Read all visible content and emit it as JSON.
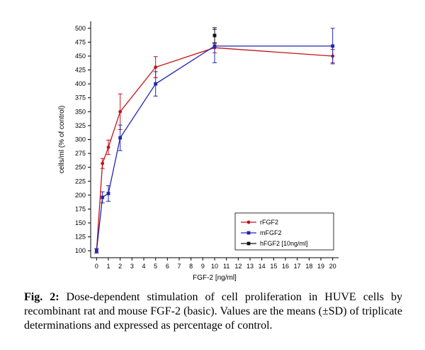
{
  "chart_data": {
    "type": "line",
    "title": "",
    "xlabel": "FGF-2 [ng/ml]",
    "ylabel": "cells/ml (% of control)",
    "xlim": [
      -0.5,
      20.5
    ],
    "ylim": [
      87.5,
      512.5
    ],
    "grid": false,
    "legend_position": "bottom-right",
    "x_ticks": [
      0,
      1,
      2,
      3,
      4,
      5,
      6,
      7,
      8,
      9,
      10,
      11,
      12,
      13,
      14,
      15,
      16,
      17,
      18,
      19,
      20
    ],
    "y_ticks": [
      100,
      125,
      150,
      175,
      200,
      225,
      250,
      275,
      300,
      325,
      350,
      375,
      400,
      425,
      450,
      475,
      500
    ],
    "series": [
      {
        "name": "rFGF2",
        "color": "#c41218",
        "marker": "circle",
        "x": [
          0,
          0.5,
          1,
          2,
          5,
          10,
          20
        ],
        "y": [
          100,
          257,
          286,
          350,
          430,
          465,
          450
        ],
        "err": [
          4,
          9,
          13,
          32,
          19,
          9,
          12
        ]
      },
      {
        "name": "mFGF2",
        "color": "#2226b2",
        "marker": "square",
        "x": [
          0,
          0.5,
          1,
          2,
          5,
          10,
          20
        ],
        "y": [
          100,
          196,
          203,
          303,
          400,
          468,
          468
        ],
        "err": [
          4,
          10,
          14,
          23,
          22,
          30,
          32
        ]
      },
      {
        "name": "hFGF2 [10ng/ml]",
        "color": "#111111",
        "marker": "square",
        "x": [
          10
        ],
        "y": [
          487
        ],
        "err": [
          14
        ]
      }
    ]
  },
  "caption": {
    "label": "Fig. 2:",
    "text": " Dose-dependent stimulation of cell proliferation in HUVE cells by recombinant rat and mouse FGF-2 (basic). Values are the means (±SD) of triplicate determinations and expressed as percentage of control."
  }
}
